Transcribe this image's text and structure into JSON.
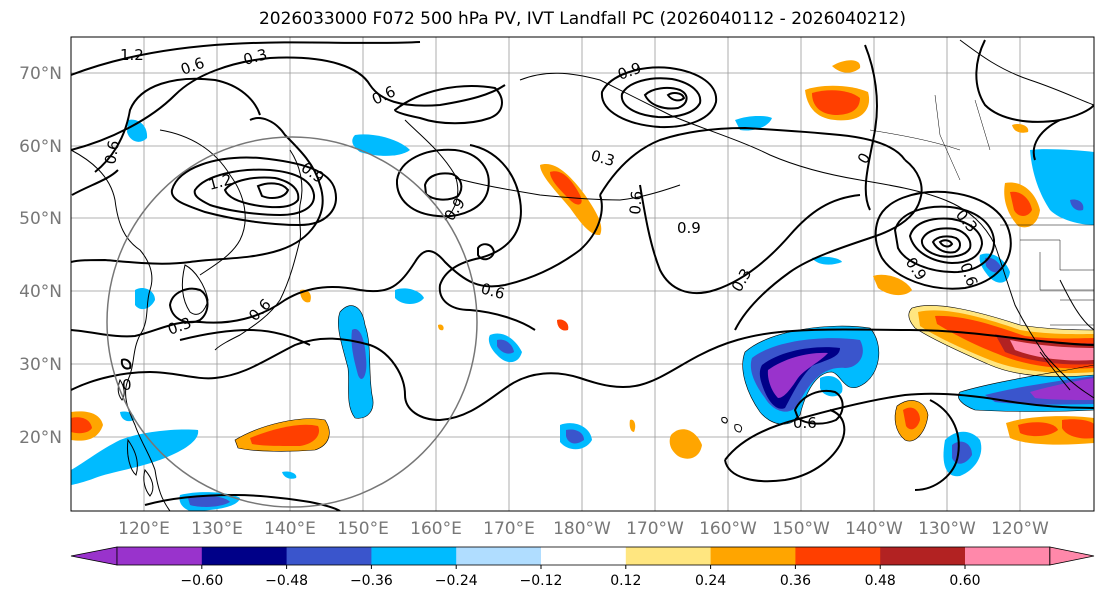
{
  "title": "2026033000 F072 500 hPa PV, IVT Landfall PC (2026040112 - 2026040212)",
  "lat_labels": [
    "70°N",
    "60°N",
    "50°N",
    "40°N",
    "30°N",
    "20°N"
  ],
  "lon_labels": [
    "120°E",
    "130°E",
    "140°E",
    "150°E",
    "160°E",
    "170°E",
    "180°W",
    "170°W",
    "160°W",
    "150°W",
    "140°W",
    "130°W",
    "120°W"
  ],
  "contour_labels": [
    "1.2",
    "0.6",
    "0.3",
    "0.6",
    "0.9",
    "0.3",
    "0.6",
    "1.2",
    "0.9",
    "0.9",
    "0.6",
    "0.9",
    "0.6",
    "0.3",
    "0.3",
    "0.6",
    "0.6",
    "0.9",
    "0.3",
    "0.6",
    "0",
    "0"
  ],
  "colorbar": {
    "colors": [
      "#9933cc",
      "#000088",
      "#3a55cc",
      "#00bbff",
      "#b0ddff",
      "#ffffff",
      "#ffe680",
      "#ffa500",
      "#ff3f00",
      "#b22222",
      "#ff88aa"
    ],
    "ticks": [
      "−0.60",
      "−0.48",
      "−0.36",
      "−0.24",
      "−0.12",
      "0.12",
      "0.24",
      "0.36",
      "0.48",
      "0.60"
    ],
    "extend": "both"
  }
}
